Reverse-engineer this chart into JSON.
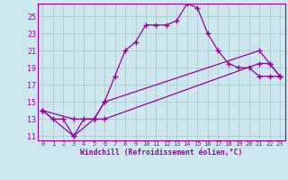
{
  "title": "",
  "xlabel": "Windchill (Refroidissement éolien,°C)",
  "bg_color": "#cce8ee",
  "line_color": "#990099",
  "grid_color": "#aacccc",
  "xlim": [
    -0.5,
    23.5
  ],
  "ylim": [
    10.5,
    26.5
  ],
  "xticks": [
    0,
    1,
    2,
    3,
    4,
    5,
    6,
    7,
    8,
    9,
    10,
    11,
    12,
    13,
    14,
    15,
    16,
    17,
    18,
    19,
    20,
    21,
    22,
    23
  ],
  "yticks": [
    11,
    13,
    15,
    17,
    19,
    21,
    23,
    25
  ],
  "line1_x": [
    0,
    1,
    2,
    3,
    4,
    5,
    6,
    7,
    8,
    9,
    10,
    11,
    12,
    13,
    14,
    15,
    16,
    17,
    18,
    19,
    20,
    21,
    22,
    23
  ],
  "line1_y": [
    14,
    13,
    13,
    11,
    13,
    13,
    15,
    18,
    21,
    22,
    24,
    24,
    24,
    24.5,
    26.5,
    26,
    23,
    21,
    19.5,
    19,
    19,
    18,
    18,
    18
  ],
  "line2_x": [
    0,
    3,
    5,
    6,
    21,
    22,
    23
  ],
  "line2_y": [
    14,
    13,
    13,
    15,
    21,
    19.5,
    18
  ],
  "line3_x": [
    0,
    3,
    5,
    6,
    21,
    22,
    23
  ],
  "line3_y": [
    14,
    11,
    13,
    13,
    19.5,
    19.5,
    18
  ]
}
